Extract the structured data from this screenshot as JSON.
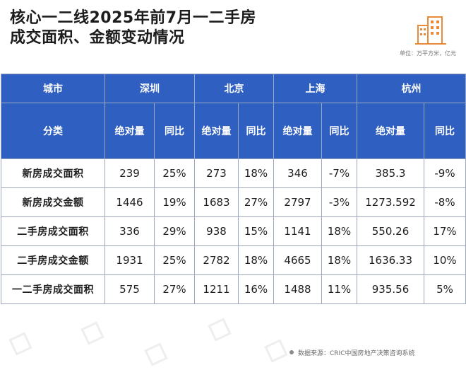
{
  "title": {
    "line1": "核心一二线2025年前7月一二手房",
    "line2": "成交面积、金额变动情况"
  },
  "logo_icon": "building-icon",
  "unit": "单位：万平方米，亿元",
  "table": {
    "city_label": "城市",
    "category_label": "分类",
    "cities": [
      "深圳",
      "北京",
      "上海",
      "杭州"
    ],
    "sub_headers": [
      "绝对量",
      "同比"
    ],
    "rows": [
      {
        "category": "新房成交面积",
        "cells": [
          {
            "abs": "239",
            "yoy": "25%",
            "trend": "pos"
          },
          {
            "abs": "273",
            "yoy": "18%",
            "trend": "neu"
          },
          {
            "abs": "346",
            "yoy": "-7%",
            "trend": "neg"
          },
          {
            "abs": "385.3",
            "yoy": "-9%",
            "trend": "neg"
          }
        ]
      },
      {
        "category": "新房成交金额",
        "cells": [
          {
            "abs": "1446",
            "yoy": "19%",
            "trend": "pos"
          },
          {
            "abs": "1683",
            "yoy": "27%",
            "trend": "neu"
          },
          {
            "abs": "2797",
            "yoy": "-3%",
            "trend": "neg"
          },
          {
            "abs": "1273.592",
            "yoy": "-8%",
            "trend": "neg"
          }
        ]
      },
      {
        "category": "二手房成交面积",
        "cells": [
          {
            "abs": "336",
            "yoy": "29%",
            "trend": "pos"
          },
          {
            "abs": "938",
            "yoy": "15%",
            "trend": "neu"
          },
          {
            "abs": "1141",
            "yoy": "18%",
            "trend": "neu"
          },
          {
            "abs": "550.26",
            "yoy": "17%",
            "trend": "neu"
          }
        ]
      },
      {
        "category": "二手房成交金额",
        "cells": [
          {
            "abs": "1931",
            "yoy": "25%",
            "trend": "pos"
          },
          {
            "abs": "2782",
            "yoy": "18%",
            "trend": "neu"
          },
          {
            "abs": "4665",
            "yoy": "18%",
            "trend": "neu"
          },
          {
            "abs": "1636.33",
            "yoy": "10%",
            "trend": "neu"
          }
        ]
      },
      {
        "category": "一二手房成交面积",
        "cells": [
          {
            "abs": "575",
            "yoy": "27%",
            "trend": "pos"
          },
          {
            "abs": "1211",
            "yoy": "16%",
            "trend": "neu"
          },
          {
            "abs": "1488",
            "yoy": "11%",
            "trend": "neu"
          },
          {
            "abs": "935.56",
            "yoy": "5%",
            "trend": "neu"
          }
        ]
      }
    ]
  },
  "source": "数据来源：CRIC中国房地产决策咨询系统",
  "colors": {
    "header_bg": "#2f5fc0",
    "positive": "#b81c24",
    "negative": "#2a9a3c",
    "logo": "#e98a3a"
  }
}
